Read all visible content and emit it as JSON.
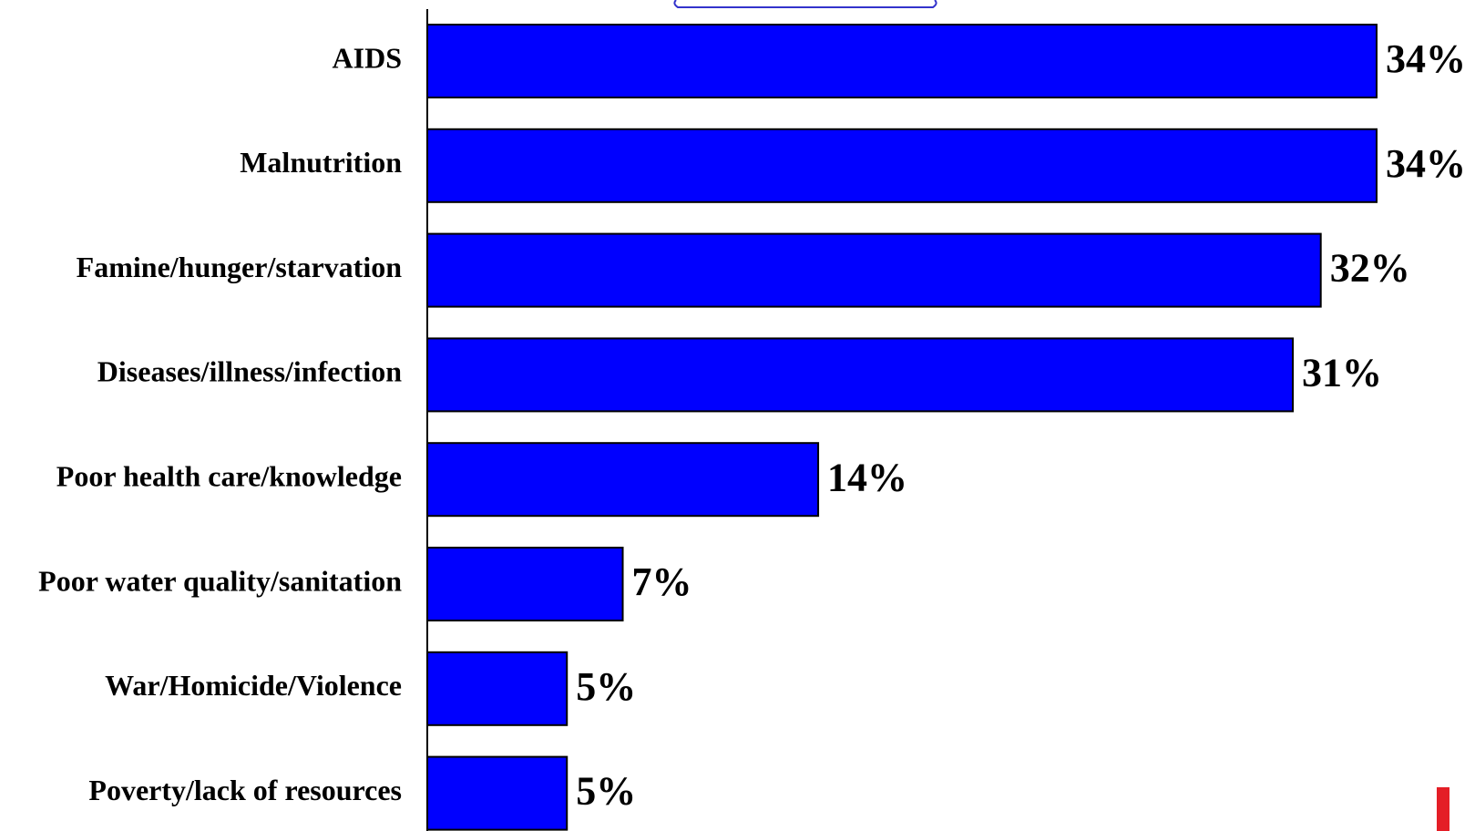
{
  "chart_data": {
    "type": "bar",
    "orientation": "horizontal",
    "categories": [
      "AIDS",
      "Malnutrition",
      "Famine/hunger/starvation",
      "Diseases/illness/infection",
      "Poor health care/knowledge",
      "Poor water quality/sanitation",
      "War/Homicide/Violence",
      "Poverty/lack of resources"
    ],
    "values": [
      34,
      34,
      32,
      31,
      14,
      7,
      5,
      5
    ],
    "value_labels": [
      "34%",
      "34%",
      "32%",
      "31%",
      "14%",
      "7%",
      "5%",
      "5%"
    ],
    "unit": "%",
    "xlim": [
      0,
      34
    ],
    "grid": false,
    "legend": "none",
    "bar_color": "#0000FF",
    "bar_outline_color": "#000000",
    "accent_mark_color": "#E41E26"
  }
}
